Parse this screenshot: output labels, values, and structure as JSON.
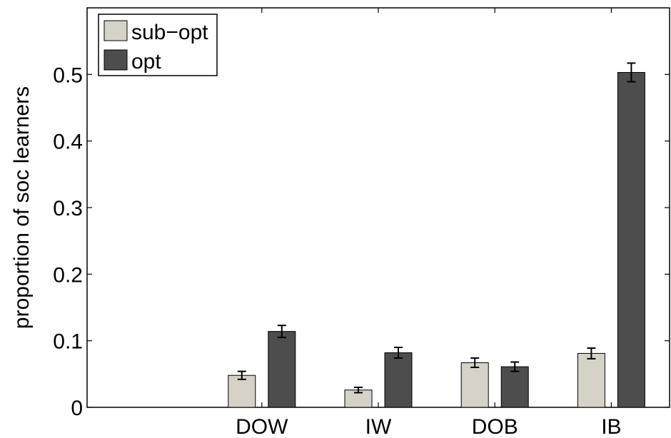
{
  "chart_data": {
    "type": "bar",
    "title": "",
    "xlabel": "",
    "ylabel": "proportion of soc learners",
    "categories": [
      "DOW",
      "IW",
      "DOB",
      "IB"
    ],
    "series": [
      {
        "name": "sub−opt",
        "color": "#d6d2c8",
        "values": [
          0.048,
          0.026,
          0.067,
          0.081
        ],
        "errors": [
          0.006,
          0.004,
          0.007,
          0.008
        ]
      },
      {
        "name": "opt",
        "color": "#4d4d4d",
        "values": [
          0.114,
          0.082,
          0.061,
          0.503
        ],
        "errors": [
          0.009,
          0.008,
          0.007,
          0.014
        ]
      }
    ],
    "ylim": [
      0,
      0.6
    ],
    "yticks": [
      0,
      0.1,
      0.2,
      0.3,
      0.4,
      0.5
    ],
    "ytick_labels": [
      "0",
      "0.1",
      "0.2",
      "0.3",
      "0.4",
      "0.5"
    ],
    "grid": false,
    "legend_position": "top-left"
  }
}
